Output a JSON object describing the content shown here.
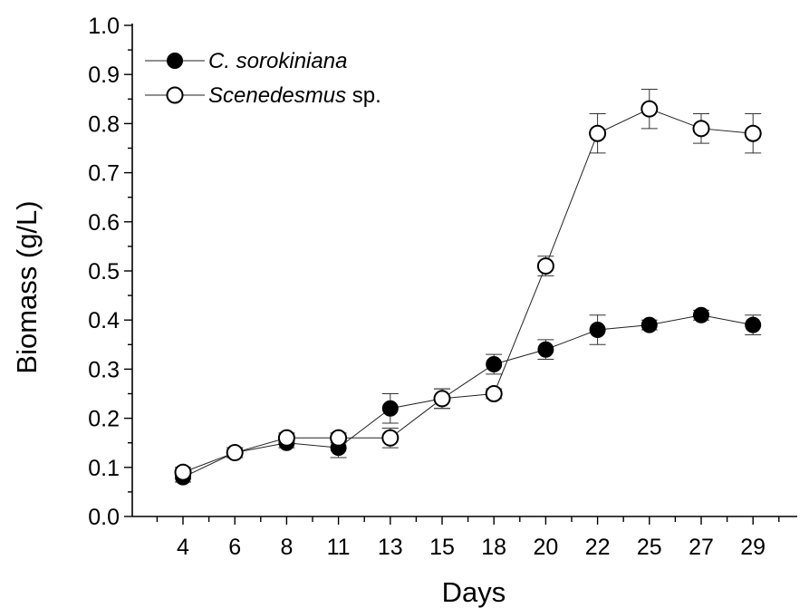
{
  "chart_data": {
    "type": "line",
    "title": "",
    "xlabel": "Days",
    "ylabel": "Biomass (g/L)",
    "categories": [
      "4",
      "6",
      "8",
      "11",
      "13",
      "15",
      "18",
      "20",
      "22",
      "25",
      "27",
      "29"
    ],
    "ylim": [
      0,
      1.0
    ],
    "yticks": [
      "0.0",
      "0.1",
      "0.2",
      "0.3",
      "0.4",
      "0.5",
      "0.6",
      "0.7",
      "0.8",
      "0.9",
      "1.0"
    ],
    "grid": false,
    "legend_position": "top-left",
    "series": [
      {
        "name_italic": "C. sorokiniana",
        "name_suffix": "",
        "marker": "filled-circle",
        "values": [
          0.08,
          0.13,
          0.15,
          0.14,
          0.22,
          0.24,
          0.31,
          0.34,
          0.38,
          0.39,
          0.41,
          0.39
        ],
        "errors": [
          0.01,
          0.01,
          0.01,
          0.02,
          0.03,
          0.02,
          0.02,
          0.02,
          0.03,
          0.01,
          0.01,
          0.02
        ]
      },
      {
        "name_italic": "Scenedesmus",
        "name_suffix": " sp.",
        "marker": "open-circle",
        "values": [
          0.09,
          0.13,
          0.16,
          0.16,
          0.16,
          0.24,
          0.25,
          0.51,
          0.78,
          0.83,
          0.79,
          0.78
        ],
        "errors": [
          0.01,
          0.01,
          0.01,
          0.01,
          0.02,
          0.02,
          0.01,
          0.02,
          0.04,
          0.04,
          0.03,
          0.04
        ]
      }
    ]
  }
}
